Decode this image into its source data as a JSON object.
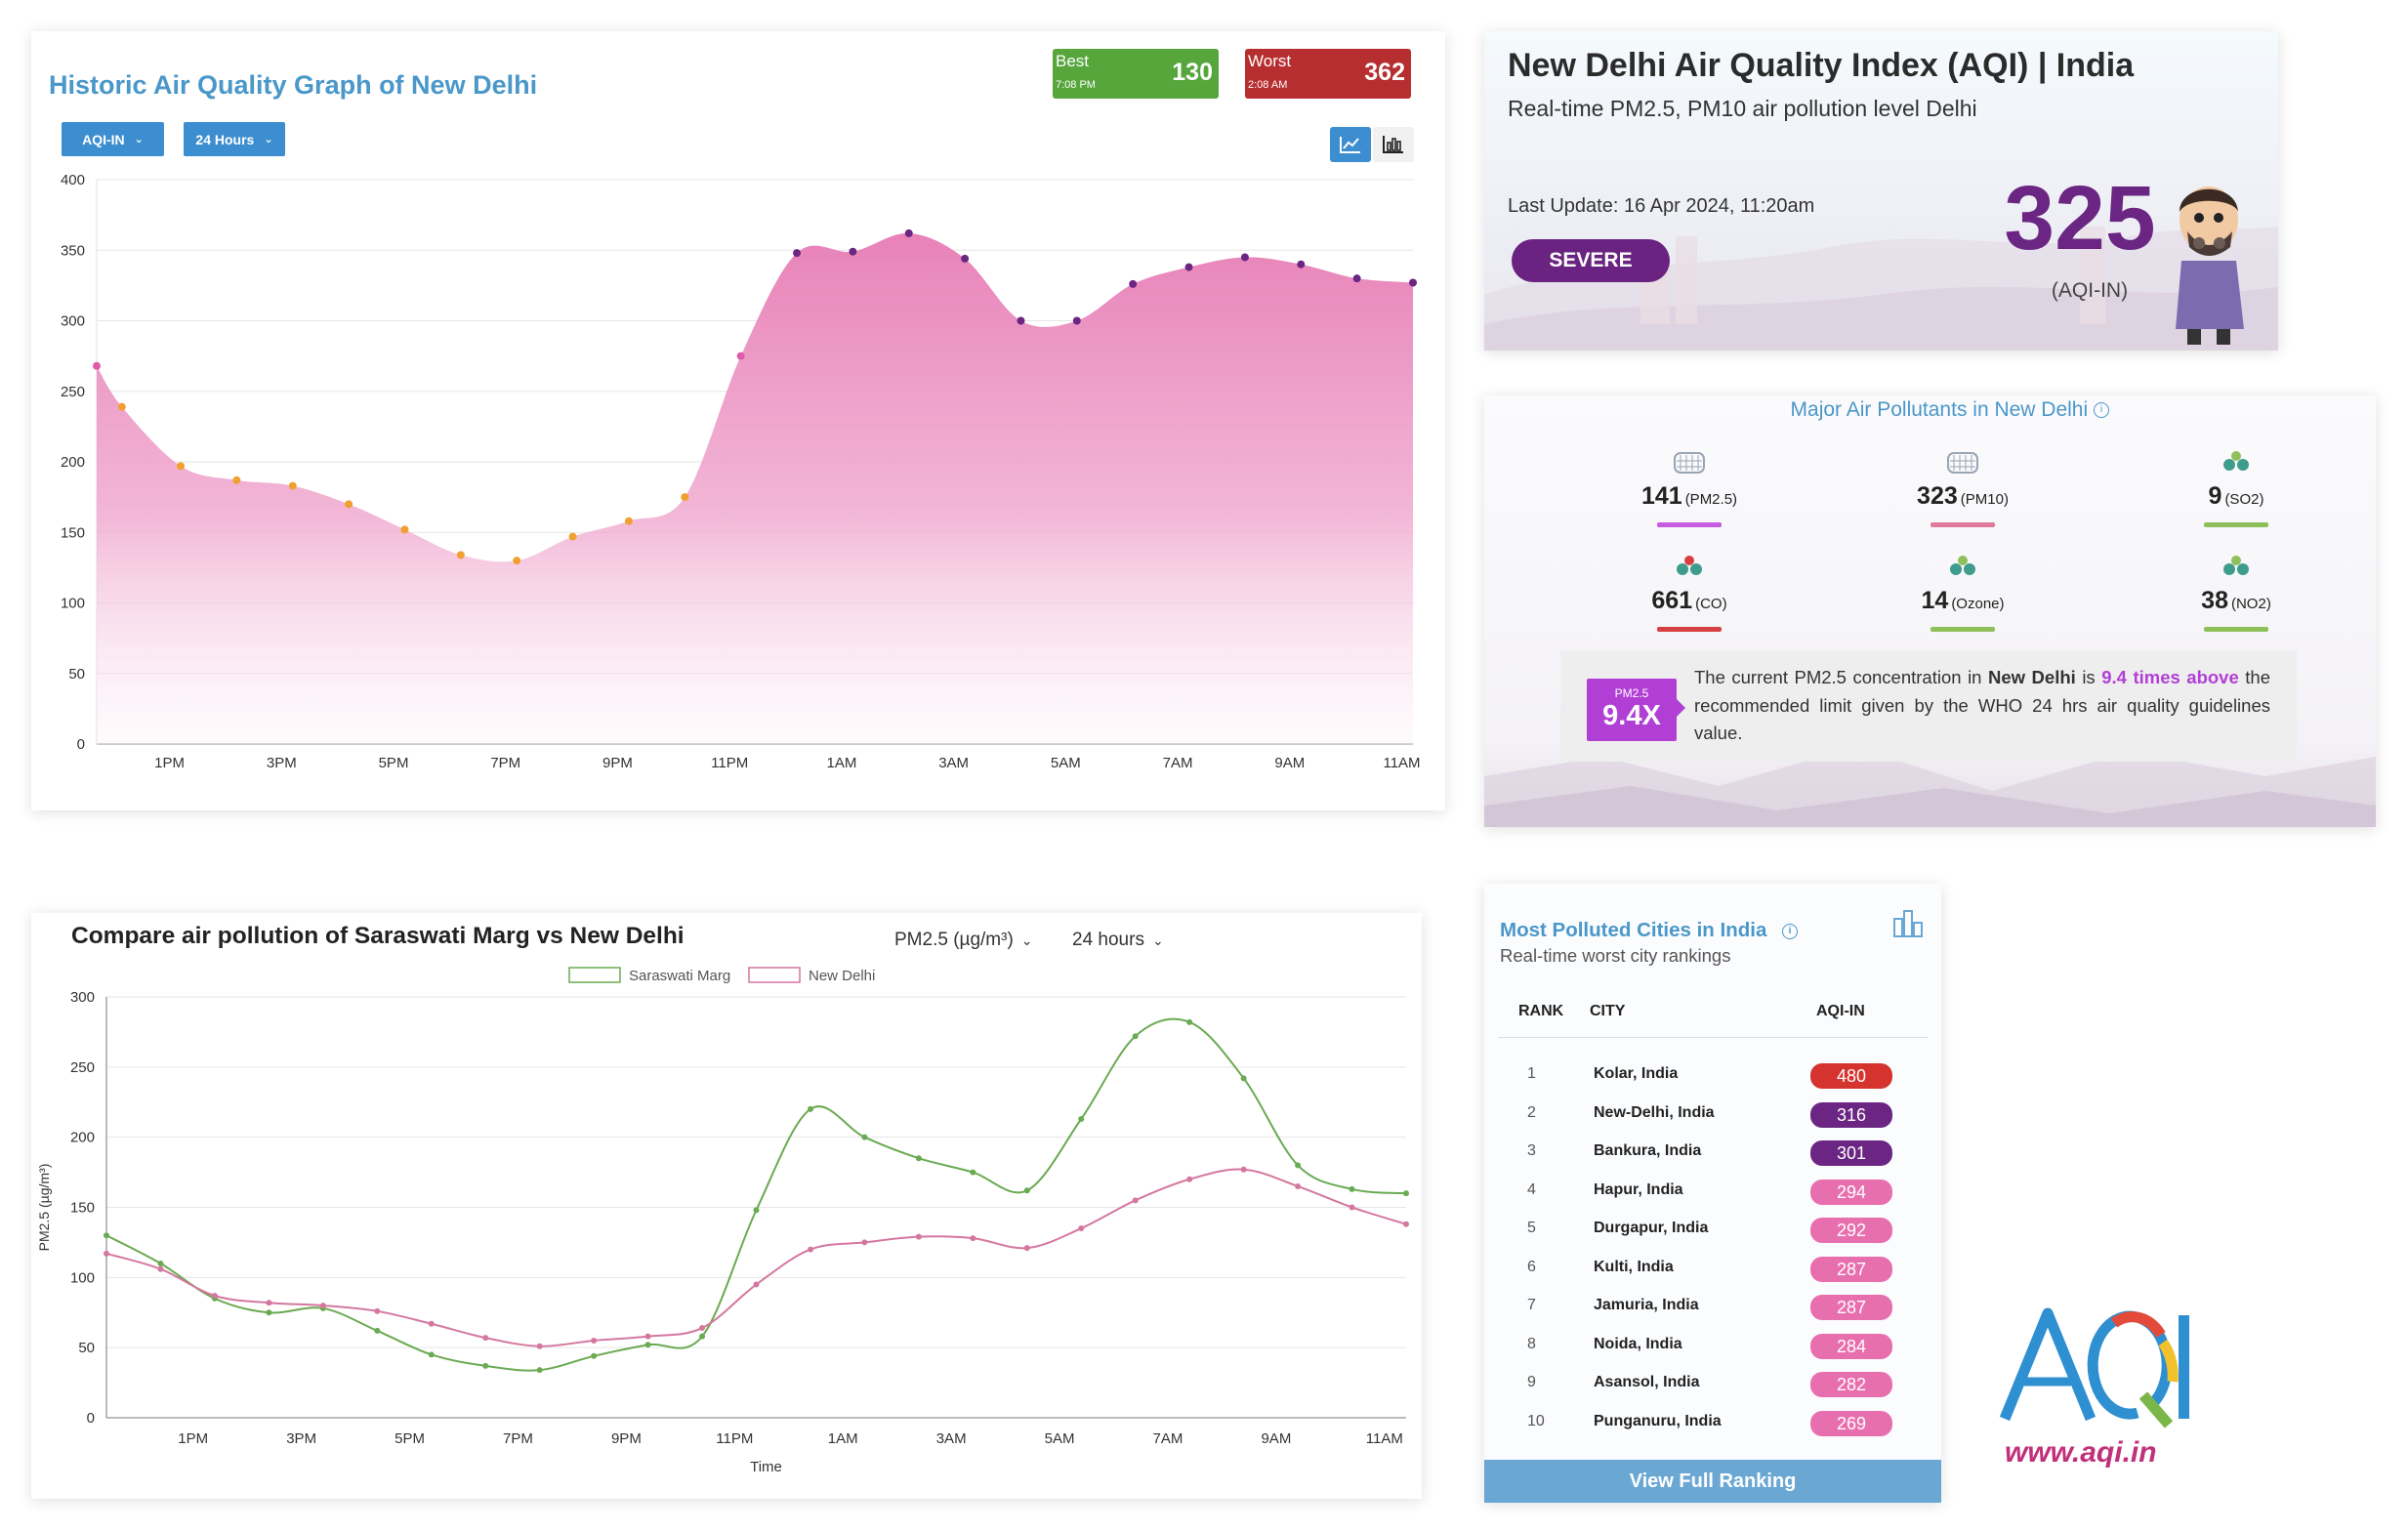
{
  "history": {
    "title": "Historic Air Quality Graph of New Delhi",
    "best": {
      "label": "Best",
      "value": "130",
      "time": "7:08 PM",
      "color": "#56a63c"
    },
    "worst": {
      "label": "Worst",
      "value": "362",
      "time": "2:08 AM",
      "color": "#b72e30"
    },
    "dropdown_metric": "AQI-IN",
    "dropdown_range": "24 Hours",
    "line_icon": "line-chart-icon",
    "bar_icon": "bar-chart-icon"
  },
  "aqi": {
    "title": "New Delhi Air Quality Index (AQI) | India",
    "subtitle": "Real-time PM2.5, PM10 air pollution level Delhi",
    "last_update": "Last Update: 16 Apr 2024, 11:20am",
    "status": "SEVERE",
    "value": "325",
    "unit": "(AQI-IN)",
    "accent": "#6b2582"
  },
  "pollutants": {
    "title": "Major Air Pollutants in New Delhi",
    "items": [
      {
        "value": "141",
        "name": "(PM2.5)",
        "icon": "particles-icon",
        "color": "#c65de0"
      },
      {
        "value": "323",
        "name": "(PM10)",
        "icon": "particles-icon",
        "color": "#e07a9b"
      },
      {
        "value": "9",
        "name": "(SO2)",
        "icon": "molecule-icon",
        "color": "#8fbf5b"
      },
      {
        "value": "661",
        "name": "(CO)",
        "icon": "molecule-icon",
        "color": "#d64040"
      },
      {
        "value": "14",
        "name": "(Ozone)",
        "icon": "molecule-icon",
        "color": "#8fbf5b"
      },
      {
        "value": "38",
        "name": "(NO2)",
        "icon": "molecule-icon",
        "color": "#8fbf5b"
      }
    ],
    "who_badge_small": "PM2.5",
    "who_badge_big": "9.4X",
    "who_text_1": "The current PM2.5 concentration in ",
    "who_city": "New Delhi",
    "who_text_2": " is ",
    "who_highlight": "9.4 times above",
    "who_text_3": " the recommended limit given by the WHO 24 hrs air quality guidelines value."
  },
  "compare": {
    "title": "Compare air pollution of Saraswati Marg vs New Delhi",
    "dropdown_metric": "PM2.5 (µg/m³)",
    "dropdown_range": "24 hours"
  },
  "ranking": {
    "title": "Most Polluted Cities in India",
    "subtitle": "Real-time worst city rankings",
    "headers": {
      "rank": "RANK",
      "city": "CITY",
      "aqi": "AQI-IN"
    },
    "rows": [
      {
        "rank": "1",
        "city": "Kolar, India",
        "aqi": "480",
        "color": "#d5332d"
      },
      {
        "rank": "2",
        "city": "New-Delhi, India",
        "aqi": "316",
        "color": "#6b2582"
      },
      {
        "rank": "3",
        "city": "Bankura, India",
        "aqi": "301",
        "color": "#6b2582"
      },
      {
        "rank": "4",
        "city": "Hapur, India",
        "aqi": "294",
        "color": "#e86fae"
      },
      {
        "rank": "5",
        "city": "Durgapur, India",
        "aqi": "292",
        "color": "#e86fae"
      },
      {
        "rank": "6",
        "city": "Kulti, India",
        "aqi": "287",
        "color": "#e86fae"
      },
      {
        "rank": "7",
        "city": "Jamuria, India",
        "aqi": "287",
        "color": "#e86fae"
      },
      {
        "rank": "8",
        "city": "Noida, India",
        "aqi": "284",
        "color": "#e86fae"
      },
      {
        "rank": "9",
        "city": "Asansol, India",
        "aqi": "282",
        "color": "#e86fae"
      },
      {
        "rank": "10",
        "city": "Punganuru, India",
        "aqi": "269",
        "color": "#e86fae"
      }
    ],
    "button": "View Full Ranking"
  },
  "logo": {
    "url": "www.aqi.in"
  },
  "chart_data": [
    {
      "type": "area",
      "title": "Historic Air Quality Graph of New Delhi",
      "ylim": [
        0,
        400
      ],
      "yticks": [
        0,
        50,
        100,
        150,
        200,
        250,
        300,
        350,
        400
      ],
      "x_tick_labels": [
        "1PM",
        "3PM",
        "5PM",
        "7PM",
        "9PM",
        "11PM",
        "1AM",
        "3AM",
        "5AM",
        "7AM",
        "9AM",
        "11AM"
      ],
      "x_tick_index": [
        1.3,
        3.3,
        5.3,
        7.3,
        9.3,
        11.3,
        13.3,
        15.3,
        17.3,
        19.3,
        21.3,
        23.3
      ],
      "x": [
        0,
        0.45,
        1.5,
        2.5,
        3.5,
        4.5,
        5.5,
        6.5,
        7.5,
        8.5,
        9.5,
        10.5,
        11.5,
        12.5,
        13.5,
        14.5,
        15.5,
        16.5,
        17.5,
        18.5,
        19.5,
        20.5,
        21.5,
        22.5,
        23.5
      ],
      "values": [
        268,
        239,
        197,
        187,
        183,
        170,
        152,
        134,
        130,
        147,
        158,
        175,
        275,
        348,
        349,
        362,
        344,
        300,
        300,
        326,
        338,
        345,
        340,
        330,
        327
      ],
      "grid": true,
      "color": "#e58fc0"
    },
    {
      "type": "line",
      "title": "Compare air pollution of Saraswati Marg vs New Delhi",
      "xlabel": "Time",
      "ylabel": "PM2.5 (µg/m³)",
      "ylim": [
        0,
        300
      ],
      "yticks": [
        0,
        50,
        100,
        150,
        200,
        250,
        300
      ],
      "x_tick_labels": [
        "1PM",
        "3PM",
        "5PM",
        "7PM",
        "9PM",
        "11PM",
        "1AM",
        "3AM",
        "5AM",
        "7AM",
        "9AM",
        "11AM"
      ],
      "x_tick_index": [
        1.6,
        3.6,
        5.6,
        7.6,
        9.6,
        11.6,
        13.6,
        15.6,
        17.6,
        19.6,
        21.6,
        23.6
      ],
      "x": [
        0,
        1,
        2,
        3,
        4,
        5,
        6,
        7,
        8,
        9,
        10,
        11,
        12,
        13,
        14,
        15,
        16,
        17,
        18,
        19,
        20,
        21,
        22,
        23,
        24
      ],
      "legend": "top",
      "series": [
        {
          "name": "Saraswati Marg",
          "color": "#6aaa52",
          "values": [
            130,
            110,
            85,
            75,
            78,
            62,
            45,
            37,
            34,
            44,
            52,
            58,
            148,
            220,
            200,
            185,
            175,
            162,
            213,
            272,
            282,
            242,
            180,
            163,
            160
          ]
        },
        {
          "name": "New Delhi",
          "color": "#d4779f",
          "values": [
            117,
            106,
            87,
            82,
            80,
            76,
            67,
            57,
            51,
            55,
            58,
            64,
            95,
            120,
            125,
            129,
            128,
            121,
            135,
            155,
            170,
            177,
            165,
            150,
            138
          ]
        }
      ]
    }
  ]
}
